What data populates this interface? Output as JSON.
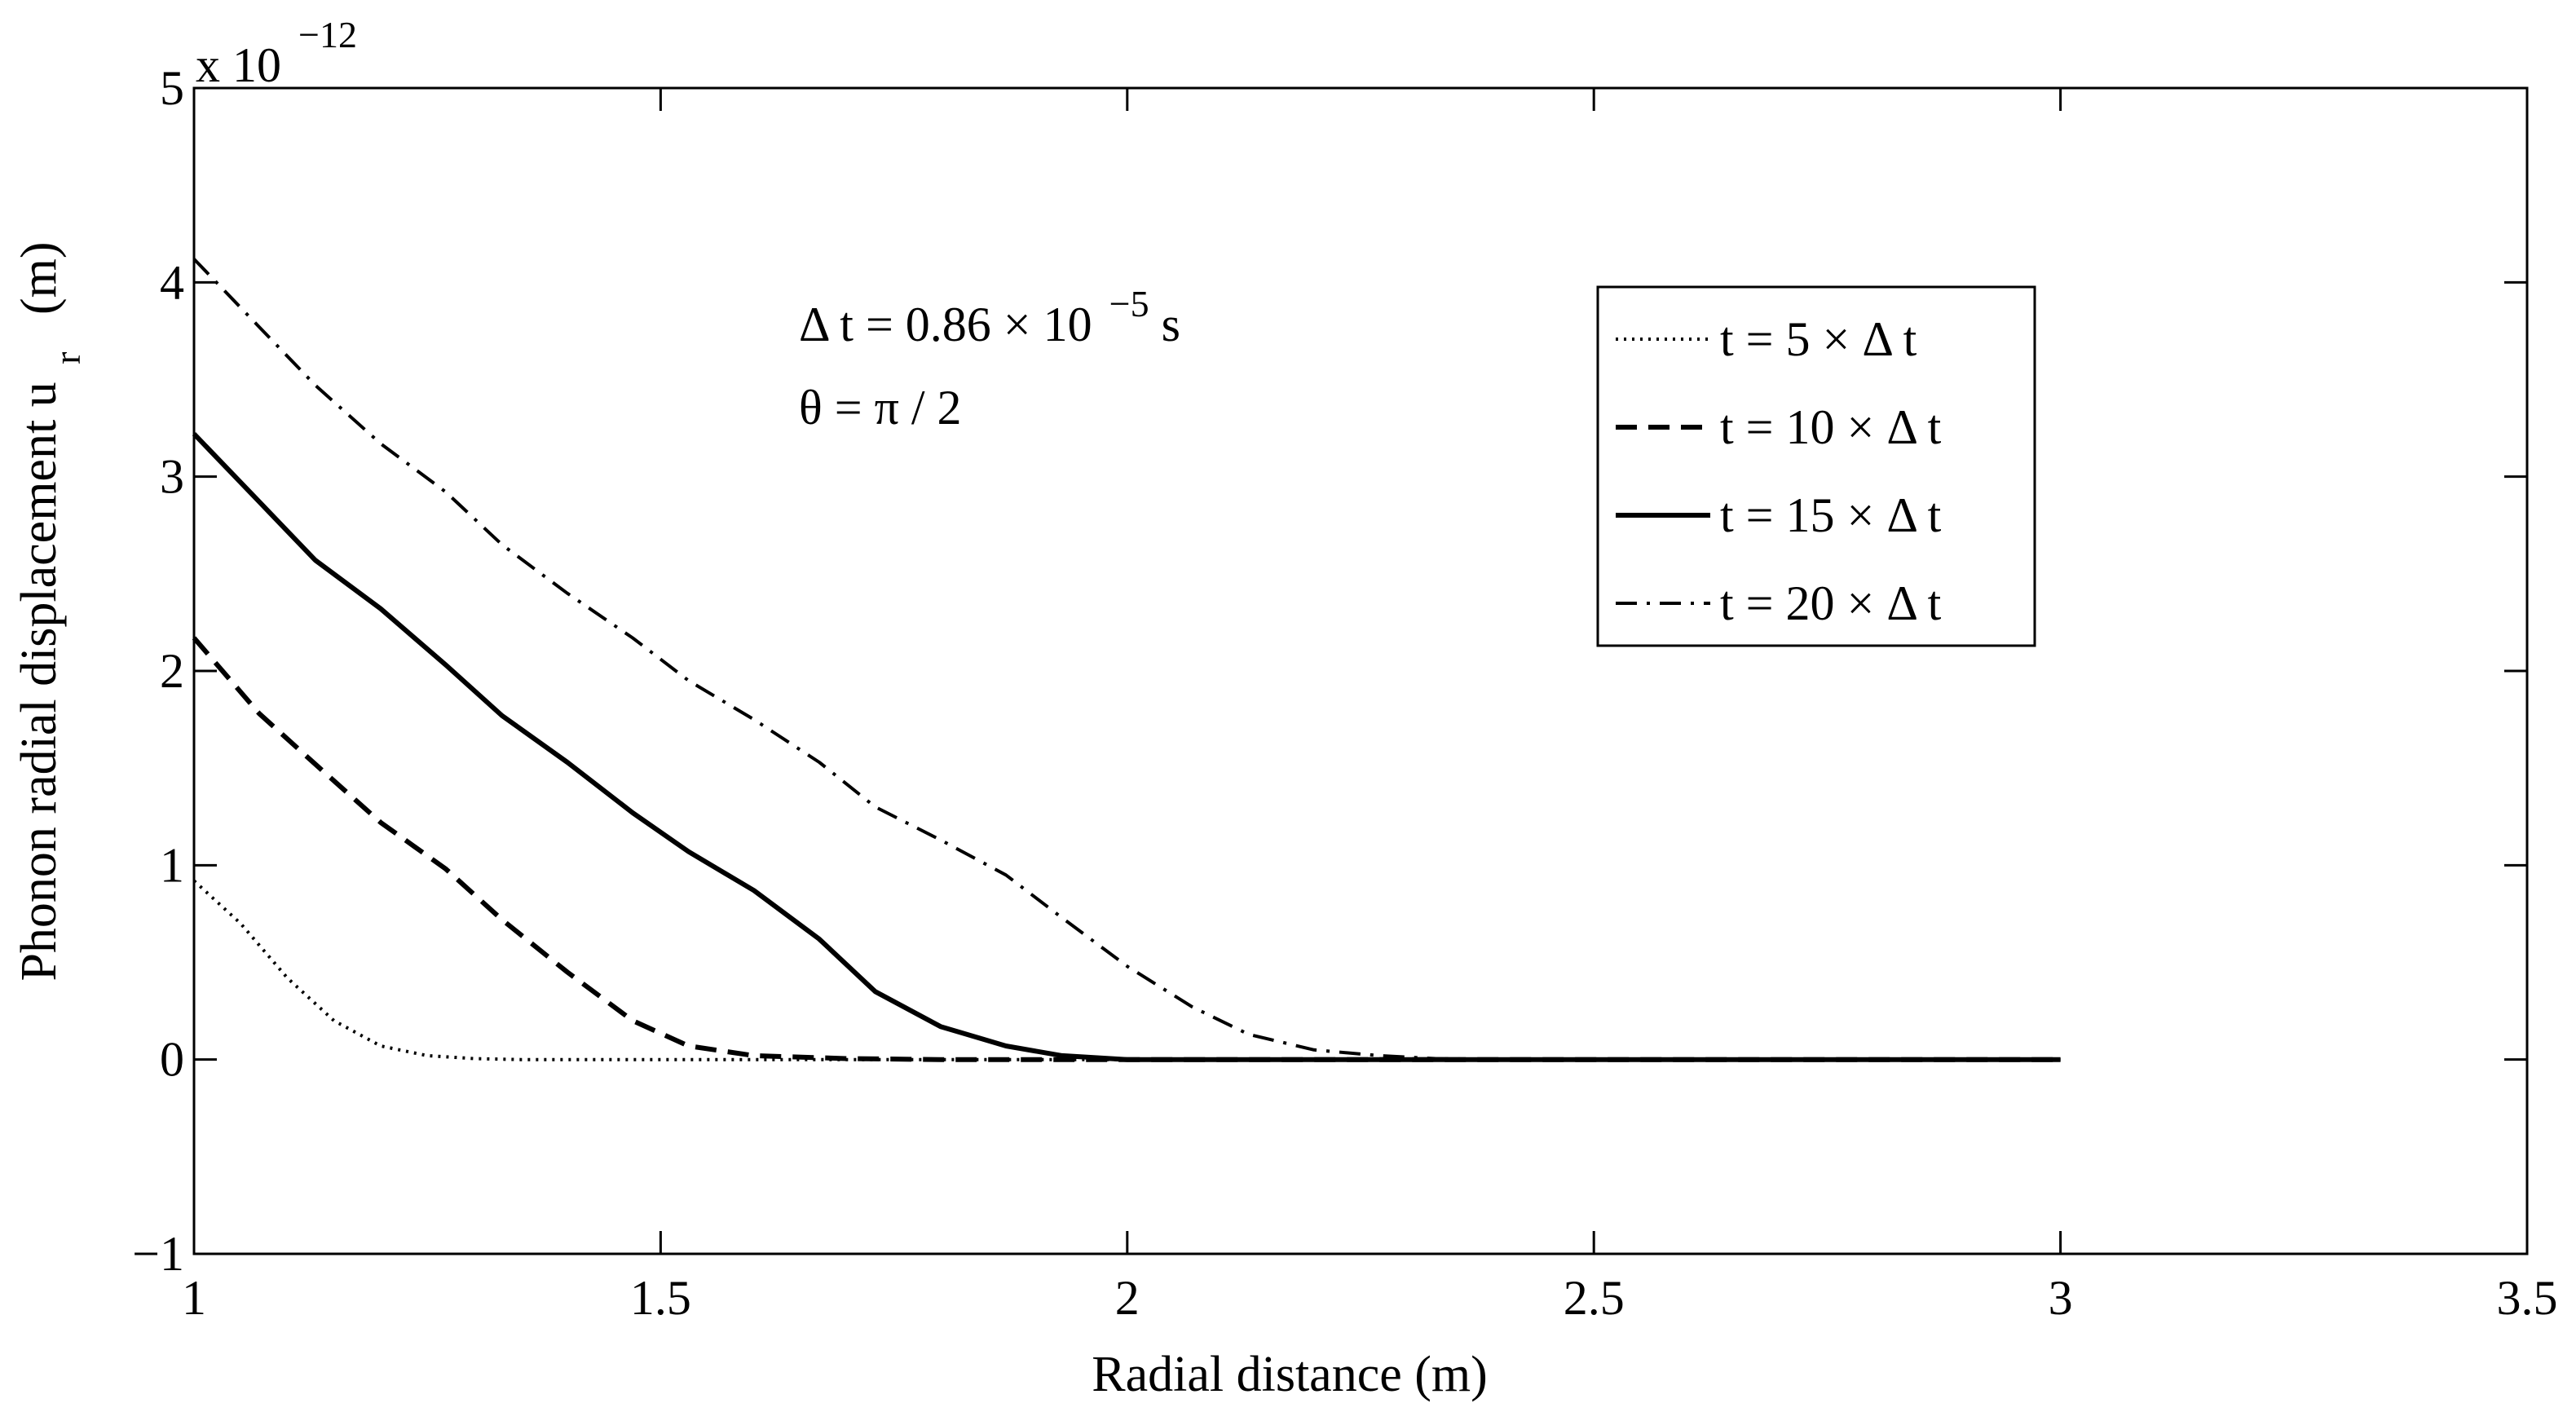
{
  "chart_data": {
    "type": "line",
    "xlabel": "Radial distance (m)",
    "ylabel_main": "Phonon radial displacement u",
    "ylabel_sub": "r",
    "ylabel_unit": "(m)",
    "multiplier_base": "x 10",
    "multiplier_exp": "−12",
    "xlim": [
      1,
      3.5
    ],
    "ylim": [
      -1,
      5
    ],
    "xticks": [
      1,
      1.5,
      2,
      2.5,
      3,
      3.5
    ],
    "yticks": [
      -1,
      0,
      1,
      2,
      3,
      4,
      5
    ],
    "xtick_labels": [
      "1",
      "1.5",
      "2",
      "2.5",
      "3",
      "3.5"
    ],
    "ytick_labels": [
      "−1",
      "0",
      "1",
      "2",
      "3",
      "4",
      "5"
    ],
    "grid": false,
    "legend_position": "top-right",
    "annotations": {
      "dt_prefix": "Δ t = 0.86 × 10",
      "dt_exp": "−5",
      "dt_suffix": " s",
      "theta": "θ = π / 2"
    },
    "series": [
      {
        "name": "t = 5 × Δ t",
        "style": "dotted",
        "x": [
          1.0,
          1.05,
          1.1,
          1.15,
          1.2,
          1.25,
          1.3,
          1.35,
          1.4,
          1.5,
          1.6,
          1.7,
          1.8,
          1.9,
          2.0,
          2.2,
          2.4,
          2.6,
          2.8,
          3.0
        ],
        "y": [
          0.92,
          0.7,
          0.42,
          0.2,
          0.07,
          0.02,
          0.005,
          0.0,
          0.0,
          0.0,
          0.0,
          0.0,
          0.0,
          0.0,
          0.0,
          0.0,
          0.0,
          0.0,
          0.0,
          0.0
        ]
      },
      {
        "name": "t = 10 × Δ t",
        "style": "dashed",
        "x": [
          1.0,
          1.07,
          1.13,
          1.2,
          1.27,
          1.33,
          1.4,
          1.47,
          1.53,
          1.6,
          1.7,
          1.8,
          2.0,
          2.2,
          2.4,
          2.6,
          2.8,
          3.0
        ],
        "y": [
          2.17,
          1.78,
          1.52,
          1.22,
          0.98,
          0.72,
          0.45,
          0.2,
          0.07,
          0.02,
          0.005,
          0.0,
          0.0,
          0.0,
          0.0,
          0.0,
          0.0,
          0.0
        ]
      },
      {
        "name": "t = 15 × Δ t",
        "style": "solid",
        "x": [
          1.0,
          1.07,
          1.13,
          1.2,
          1.27,
          1.33,
          1.4,
          1.47,
          1.53,
          1.6,
          1.67,
          1.73,
          1.8,
          1.87,
          1.93,
          2.0,
          2.2,
          2.4,
          2.6,
          2.8,
          3.0
        ],
        "y": [
          3.22,
          2.87,
          2.57,
          2.32,
          2.03,
          1.77,
          1.53,
          1.27,
          1.07,
          0.87,
          0.62,
          0.35,
          0.17,
          0.07,
          0.02,
          0.0,
          0.0,
          0.0,
          0.0,
          0.0,
          0.0
        ]
      },
      {
        "name": "t = 20 × Δ t",
        "style": "dashdot",
        "x": [
          1.0,
          1.07,
          1.13,
          1.2,
          1.27,
          1.33,
          1.4,
          1.47,
          1.53,
          1.6,
          1.67,
          1.73,
          1.8,
          1.87,
          1.93,
          2.0,
          2.07,
          2.13,
          2.2,
          2.27,
          2.33,
          2.4,
          2.6,
          2.8,
          3.0
        ],
        "y": [
          4.12,
          3.77,
          3.47,
          3.17,
          2.92,
          2.65,
          2.4,
          2.17,
          1.95,
          1.75,
          1.53,
          1.3,
          1.13,
          0.95,
          0.73,
          0.48,
          0.27,
          0.13,
          0.05,
          0.02,
          0.005,
          0.0,
          0.0,
          0.0,
          0.0
        ]
      }
    ]
  }
}
